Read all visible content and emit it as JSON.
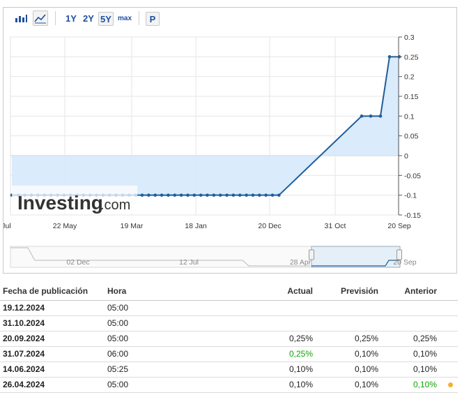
{
  "toolbar": {
    "range_buttons": [
      "1Y",
      "2Y",
      "5Y",
      "max"
    ],
    "selected_range": "5Y",
    "p_button": "P",
    "bar_icon": "bar-chart-icon",
    "line_icon": "line-chart-icon"
  },
  "logo": {
    "brand": "Investing",
    "suffix": ".com"
  },
  "chart_data": {
    "type": "line",
    "x_ticks": [
      "Jul",
      "22 May",
      "19 Mar",
      "18 Jan",
      "20 Dec",
      "31 Oct",
      "20 Sep"
    ],
    "y_ticks": [
      "0.3",
      "0.25",
      "0.2",
      "0.15",
      "0.1",
      "0.05",
      "0",
      "-0.05",
      "-0.1",
      "-0.15"
    ],
    "ylim": [
      -0.15,
      0.3
    ],
    "fill": "area",
    "series": [
      {
        "values": [
          -0.1,
          -0.1,
          -0.1,
          -0.1,
          -0.1,
          -0.1,
          -0.1,
          -0.1,
          -0.1,
          -0.1,
          -0.1,
          -0.1,
          -0.1,
          -0.1,
          -0.1,
          -0.1,
          -0.1,
          -0.1,
          -0.1,
          -0.1,
          -0.1,
          -0.1,
          -0.1,
          -0.1,
          -0.1,
          -0.1,
          -0.1,
          -0.1,
          -0.1,
          -0.1,
          -0.1,
          -0.1,
          -0.1,
          -0.1,
          -0.1,
          -0.1,
          -0.1,
          -0.1,
          -0.1,
          -0.1,
          -0.1,
          -0.1,
          0.1,
          0.1,
          0.1,
          0.25,
          0.25
        ]
      }
    ],
    "navigator_ticks": [
      "02 Dec",
      "12 Jul",
      "28 Apr",
      "20 Sep"
    ],
    "colors": {
      "line": "#1d5e9c",
      "fill": "#d6e9fb",
      "grid": "#e6e6e6"
    }
  },
  "table": {
    "headers": [
      "Fecha de publicación",
      "Hora",
      "Actual",
      "Previsión",
      "Anterior"
    ],
    "rows": [
      {
        "date": "19.12.2024",
        "time": "05:00",
        "actual": "",
        "forecast": "",
        "previous": ""
      },
      {
        "date": "31.10.2024",
        "time": "05:00",
        "actual": "",
        "forecast": "",
        "previous": ""
      },
      {
        "date": "20.09.2024",
        "time": "05:00",
        "actual": "0,25%",
        "forecast": "0,25%",
        "previous": "0,25%"
      },
      {
        "date": "31.07.2024",
        "time": "06:00",
        "actual": "0,25%",
        "forecast": "0,10%",
        "previous": "0,10%"
      },
      {
        "date": "14.06.2024",
        "time": "05:25",
        "actual": "0,10%",
        "forecast": "0,10%",
        "previous": "0,10%"
      },
      {
        "date": "26.04.2024",
        "time": "05:00",
        "actual": "0,10%",
        "forecast": "0,10%",
        "previous": "0,10%"
      }
    ]
  }
}
